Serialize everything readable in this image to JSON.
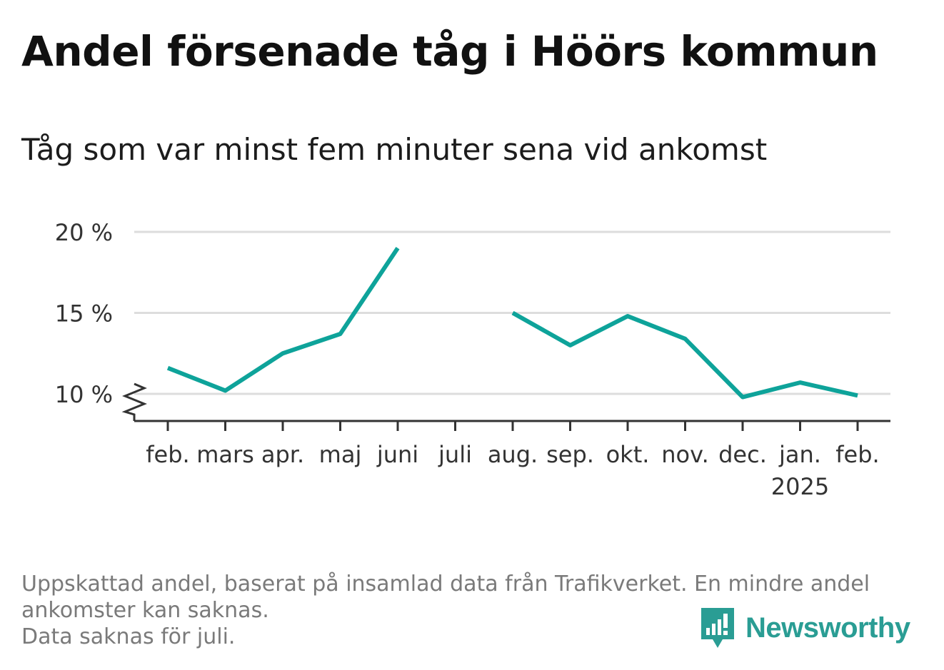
{
  "title": "Andel försenade tåg i Höörs kommun",
  "subtitle": "Tåg som var minst fem minuter sena vid ankomst",
  "notes": [
    "Uppskattad andel, baserat på insamlad data från Trafikverket. En mindre andel",
    "ankomster kan saknas.",
    "Data saknas för juli."
  ],
  "brand": {
    "name": "Newsworthy",
    "icon": "newsworthy-logo-icon"
  },
  "colors": {
    "line": "#0ea39a",
    "grid": "#dddddd",
    "axis": "#333333",
    "text": "#333333"
  },
  "chart_data": {
    "type": "line",
    "categories": [
      "feb.",
      "mars",
      "apr.",
      "maj",
      "juni",
      "juli",
      "aug.",
      "sep.",
      "okt.",
      "nov.",
      "dec.",
      "jan.",
      "feb."
    ],
    "year_labels": [
      "",
      "",
      "",
      "",
      "",
      "",
      "",
      "",
      "",
      "",
      "",
      "2025",
      ""
    ],
    "series": [
      {
        "name": "",
        "values": [
          11.6,
          10.2,
          12.5,
          13.7,
          19.0,
          null,
          15.0,
          13.0,
          14.8,
          13.4,
          9.8,
          10.7,
          9.9
        ]
      }
    ],
    "yticks": [
      10,
      15,
      20
    ],
    "ytick_labels": [
      "10 %",
      "15 %",
      "20 %"
    ],
    "ylim": [
      8.3,
      20
    ],
    "axis_break": true,
    "grid": true,
    "legend": "none"
  }
}
